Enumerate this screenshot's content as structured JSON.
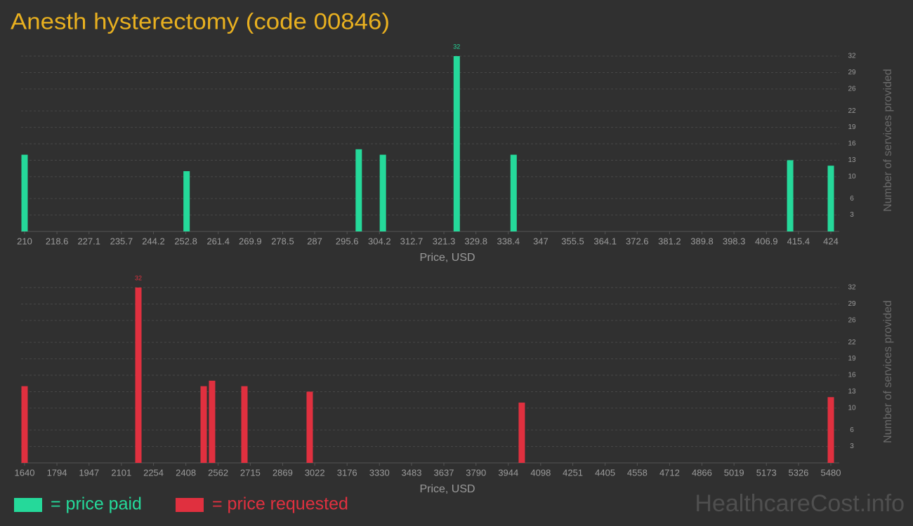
{
  "title": "Anesth hysterectomy (code 00846)",
  "watermark": "HealthcareCost.info",
  "chart_data": [
    {
      "type": "bar",
      "x_label": "Price, USD",
      "y_label": "Number of services provided",
      "x": [
        210,
        253,
        298.7,
        305.1,
        324.7,
        339.8,
        413.2,
        424
      ],
      "series": [
        {
          "name": "= price paid",
          "color": "#25d99a",
          "values": [
            14,
            11,
            15,
            14,
            32,
            14,
            13,
            12
          ]
        }
      ],
      "xlim": [
        210,
        424
      ],
      "xticks": [
        210,
        218.6,
        227.1,
        235.7,
        244.2,
        252.8,
        261.4,
        269.9,
        278.5,
        287,
        295.6,
        304.2,
        312.7,
        321.3,
        329.8,
        338.4,
        347,
        355.5,
        364.1,
        372.6,
        381.2,
        389.8,
        398.3,
        406.9,
        415.4,
        424
      ],
      "ylim": [
        0,
        32
      ],
      "yticks": [
        3,
        6,
        10,
        13,
        16,
        19,
        22,
        26,
        29,
        32
      ],
      "grid": true
    },
    {
      "type": "bar",
      "x_label": "Price, USD",
      "y_label": "Number of services provided",
      "x": [
        1640,
        2182,
        2493,
        2533,
        2687,
        2998,
        4008,
        5480
      ],
      "series": [
        {
          "name": "= price requested",
          "color": "#e0303f",
          "values": [
            14,
            32,
            14,
            15,
            14,
            13,
            11,
            12
          ]
        }
      ],
      "xlim": [
        1640,
        5480
      ],
      "xticks": [
        1640,
        1794,
        1947,
        2101,
        2254,
        2408,
        2562,
        2715,
        2869,
        3022,
        3176,
        3330,
        3483,
        3637,
        3790,
        3944,
        4098,
        4251,
        4405,
        4558,
        4712,
        4866,
        5019,
        5173,
        5326,
        5480
      ],
      "ylim": [
        0,
        32
      ],
      "yticks": [
        3,
        6,
        10,
        13,
        16,
        19,
        22,
        26,
        29,
        32
      ],
      "grid": true
    }
  ]
}
